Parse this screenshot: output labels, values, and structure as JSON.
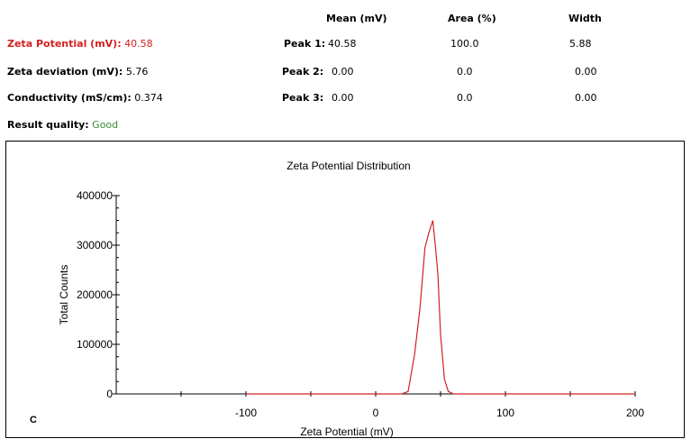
{
  "summary": {
    "zeta_potential": {
      "label": "Zeta Potential (mV):",
      "value": "40.58"
    },
    "zeta_deviation": {
      "label": "Zeta deviation (mV):",
      "value": "5.76"
    },
    "conductivity": {
      "label": "Conductivity (mS/cm):",
      "value": "0.374"
    },
    "result_quality": {
      "label": "Result quality:",
      "value": "Good"
    }
  },
  "peaks": {
    "headers": [
      "Mean (mV)",
      "Area (%)",
      "Width"
    ],
    "rows": [
      {
        "label": "Peak 1:",
        "mean": "40.58",
        "area": "100.0",
        "width": "5.88"
      },
      {
        "label": "Peak 2:",
        "mean": "0.00",
        "area": "0.0",
        "width": "0.00"
      },
      {
        "label": "Peak 3:",
        "mean": "0.00",
        "area": "0.0",
        "width": "0.00"
      }
    ]
  },
  "panel_label": "C",
  "colors": {
    "curve": "#d42020",
    "good": "#3a8a3a",
    "accent": "#d42020"
  },
  "chart_data": {
    "type": "line",
    "title": "Zeta Potential Distribution",
    "xlabel": "Zeta Potential (mV)",
    "ylabel": "Total Counts",
    "xlim": [
      -200,
      200
    ],
    "ylim": [
      0,
      400000
    ],
    "x_ticks": [
      -100,
      0,
      100,
      200
    ],
    "x_minor_ticks": [
      -150,
      -50,
      50,
      150
    ],
    "y_ticks": [
      0,
      100000,
      200000,
      300000,
      400000
    ],
    "y_tick_labels": [
      "0",
      "100000",
      "200000",
      "300000",
      "400000"
    ],
    "series": [
      {
        "name": "Zeta Potential Distribution",
        "x": [
          -100,
          0,
          20,
          25,
          30,
          34,
          38,
          41,
          44,
          46,
          48,
          50,
          53,
          56,
          60,
          200
        ],
        "y": [
          0,
          0,
          0,
          5000,
          80000,
          170000,
          295000,
          325000,
          350000,
          300000,
          240000,
          120000,
          30000,
          5000,
          0,
          0
        ]
      }
    ]
  }
}
